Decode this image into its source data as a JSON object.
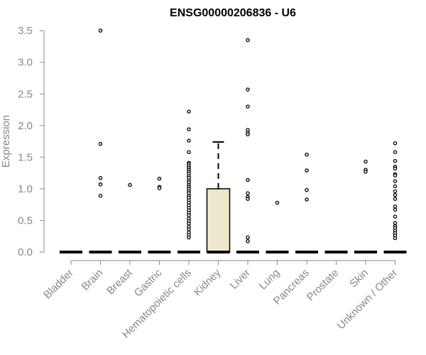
{
  "chart_data": {
    "type": "box",
    "title": "ENSG00000206836 - U6",
    "ylabel": "Expression",
    "xlabel": "",
    "ylim": [
      0,
      3.5
    ],
    "yticks": [
      0.0,
      0.5,
      1.0,
      1.5,
      2.0,
      2.5,
      3.0,
      3.5
    ],
    "ytick_labels": [
      "0.0",
      "0.5",
      "1.0",
      "1.5",
      "2.0",
      "2.5",
      "3.0",
      "3.5"
    ],
    "categories": [
      "Bladder",
      "Brain",
      "Breast",
      "Gastric",
      "Hematopoietic cells",
      "Kidney",
      "Liver",
      "Lung",
      "Pancreas",
      "Prostate",
      "Skin",
      "Unknown / Other"
    ],
    "box_fill": "#ede7cc",
    "boxes": [
      {
        "category": "Bladder",
        "median": 0,
        "q1": 0,
        "q3": 0,
        "whisker_low": 0,
        "whisker_high": 0
      },
      {
        "category": "Brain",
        "median": 0,
        "q1": 0,
        "q3": 0,
        "whisker_low": 0,
        "whisker_high": 0
      },
      {
        "category": "Breast",
        "median": 0,
        "q1": 0,
        "q3": 0,
        "whisker_low": 0,
        "whisker_high": 0
      },
      {
        "category": "Gastric",
        "median": 0,
        "q1": 0,
        "q3": 0,
        "whisker_low": 0,
        "whisker_high": 0
      },
      {
        "category": "Hematopoietic cells",
        "median": 0,
        "q1": 0,
        "q3": 0,
        "whisker_low": 0,
        "whisker_high": 0
      },
      {
        "category": "Kidney",
        "median": 0,
        "q1": 0,
        "q3": 1.0,
        "whisker_low": 0,
        "whisker_high": 1.74
      },
      {
        "category": "Liver",
        "median": 0,
        "q1": 0,
        "q3": 0,
        "whisker_low": 0,
        "whisker_high": 0
      },
      {
        "category": "Lung",
        "median": 0,
        "q1": 0,
        "q3": 0,
        "whisker_low": 0,
        "whisker_high": 0
      },
      {
        "category": "Pancreas",
        "median": 0,
        "q1": 0,
        "q3": 0,
        "whisker_low": 0,
        "whisker_high": 0
      },
      {
        "category": "Prostate",
        "median": 0,
        "q1": 0,
        "q3": 0,
        "whisker_low": 0,
        "whisker_high": 0
      },
      {
        "category": "Skin",
        "median": 0,
        "q1": 0,
        "q3": 0,
        "whisker_low": 0,
        "whisker_high": 0
      },
      {
        "category": "Unknown / Other",
        "median": 0,
        "q1": 0,
        "q3": 0,
        "whisker_low": 0,
        "whisker_high": 0
      }
    ],
    "outliers": [
      {
        "category": "Brain",
        "values": [
          3.5,
          1.71,
          1.17,
          1.07,
          0.89
        ]
      },
      {
        "category": "Breast",
        "values": [
          1.06
        ]
      },
      {
        "category": "Gastric",
        "values": [
          1.16,
          1.03,
          1.01
        ]
      },
      {
        "category": "Hematopoietic cells",
        "values": [
          2.22,
          1.94,
          1.76,
          1.58,
          1.41,
          1.39,
          1.36,
          1.33,
          1.3,
          1.27,
          1.24,
          1.2,
          1.17,
          1.13,
          1.1,
          1.06,
          1.03,
          1.0,
          0.96,
          0.93,
          0.89,
          0.86,
          0.82,
          0.78,
          0.74,
          0.7,
          0.66,
          0.62,
          0.58,
          0.53,
          0.49,
          0.45,
          0.4,
          0.36,
          0.31,
          0.27,
          0.23
        ]
      },
      {
        "category": "Liver",
        "values": [
          3.35,
          2.57,
          2.3,
          1.93,
          1.89,
          1.86,
          1.14,
          0.93,
          0.87,
          0.84,
          0.23,
          0.17
        ]
      },
      {
        "category": "Lung",
        "values": [
          0.78
        ]
      },
      {
        "category": "Pancreas",
        "values": [
          1.54,
          1.29,
          0.98,
          0.83
        ]
      },
      {
        "category": "Skin",
        "values": [
          1.43,
          1.3,
          1.27
        ]
      },
      {
        "category": "Unknown / Other",
        "values": [
          1.72,
          1.58,
          1.44,
          1.35,
          1.32,
          1.23,
          1.21,
          1.12,
          1.04,
          0.96,
          0.9,
          0.84,
          0.72,
          0.67,
          0.56,
          0.46,
          0.41,
          0.38,
          0.34,
          0.3,
          0.26,
          0.22
        ]
      }
    ]
  }
}
